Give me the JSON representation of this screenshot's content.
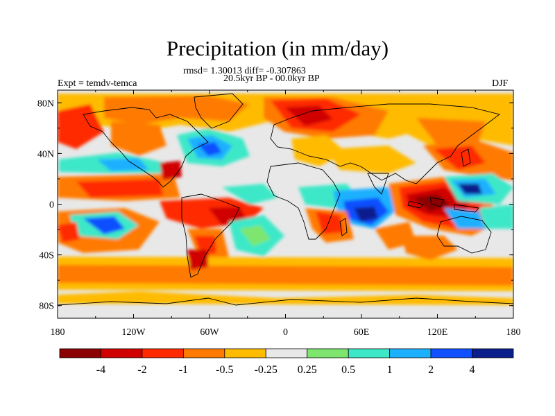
{
  "title": "Precipitation (in mm/day)",
  "stats": "rmsd= 1.30013 diff= -0.307863",
  "period": "20.5kyr BP - 00.0kyr BP",
  "experiment": "Expt = temdv-temca",
  "season": "DJF",
  "map": {
    "lon_ticks": [
      "180",
      "120W",
      "60W",
      "0",
      "60E",
      "120E",
      "180"
    ],
    "lat_ticks": [
      "80N",
      "40N",
      "0",
      "40S",
      "80S"
    ]
  },
  "colorbar": {
    "labels": [
      "-4",
      "-2",
      "-1",
      "-0.5",
      "-0.25",
      "0.25",
      "0.5",
      "1",
      "2",
      "4"
    ],
    "colors": [
      "#8b0000",
      "#d00000",
      "#ff2a00",
      "#ff7a00",
      "#ffbb00",
      "#e8e8e8",
      "#7ee66e",
      "#3ce8c8",
      "#1cb0ff",
      "#1050ff",
      "#0a1e8c"
    ]
  }
}
